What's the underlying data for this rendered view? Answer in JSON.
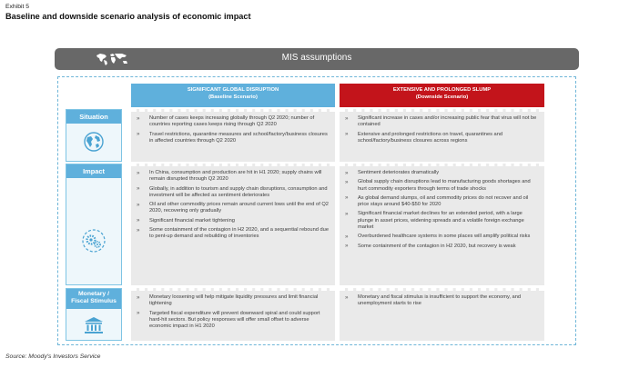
{
  "exhibit": "Exhibit 5",
  "title": "Baseline and downside scenario analysis of economic impact",
  "banner": {
    "label": "MIS assumptions",
    "icon": "world-map-icon"
  },
  "columns": {
    "baseline": {
      "line1": "SIGNIFICANT GLOBAL DISRUPTION",
      "line2": "(Baseline Scenario)",
      "color": "#5fb0dc"
    },
    "downside": {
      "line1": "EXTENSIVE AND PROLONGED SLUMP",
      "line2": "(Downside Scenario)",
      "color": "#c3141b"
    }
  },
  "rows": {
    "situation": {
      "label": "Situation",
      "icon": "globe-icon",
      "baseline": [
        "Number of cases keeps increasing globally through Q2 2020; number of countries reporting cases keeps rising through Q2 2020",
        "Travel restrictions, quarantine measures and school/factory/business closures in affected countries through Q2 2020"
      ],
      "downside": [
        "Significant increase in cases and/or increasing public fear that virus will not be contained",
        "Extensive and prolonged restrictions on travel, quarantines and school/factory/business closures across regions"
      ]
    },
    "impact": {
      "label": "Impact",
      "icon": "gears-icon",
      "baseline": [
        "In China, consumption and production are hit in H1 2020; supply chains will remain disrupted through Q2 2020",
        "Globally, in addition to tourism and supply chain disruptions, consumption and investment will be affected as sentiment deteriorates",
        "Oil and other commodity prices remain around current lows until the end of Q2 2020, recovering only gradually",
        "Significant financial market tightening",
        "Some containment of the contagion in H2 2020, and a sequential rebound due to pent-up demand and rebuilding of inventories"
      ],
      "downside": [
        "Sentiment deteriorates dramatically",
        "Global supply chain disruptions lead to manufacturing goods shortages and hurt commodity exporters through terms of trade shocks",
        "As global demand slumps, oil and commodity prices do not recover and oil price stays around $40-$50 for 2020",
        "Significant financial market declines for an extended period, with a large plunge in asset prices, widening spreads and a volatile foreign exchange market",
        "Overburdened healthcare systems in some places will amplify political risks",
        "Some containment of the contagion in H2 2020, but recovery is weak"
      ]
    },
    "stimulus": {
      "label_line1": "Monetary /",
      "label_line2": "Fiscal Stimulus",
      "icon": "bank-icon",
      "baseline": [
        "Monetary loosening will help mitigate liquidity pressures and limit financial tightening",
        "Targeted fiscal expenditure will prevent downward spiral and could support hard-hit sectors. But policy responses will offer small offset to adverse economic impact in H1 2020"
      ],
      "downside": [
        "Monetary and fiscal stimulus is insufficient to support the economy, and unemployment starts to rise"
      ]
    }
  },
  "source": "Source: Moody's Investors Service"
}
